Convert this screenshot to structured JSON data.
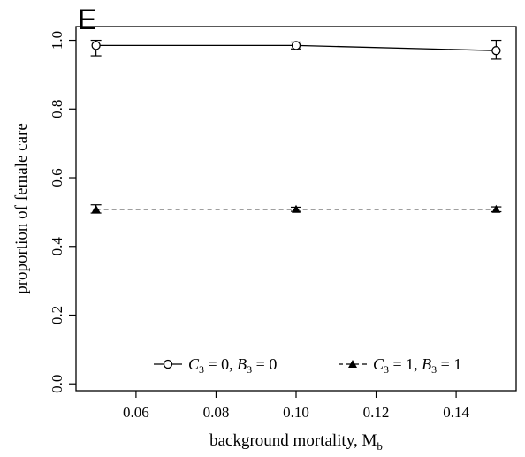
{
  "chart_data": {
    "type": "line",
    "panel_label": "E",
    "title": "",
    "xlabel": "background mortality, M",
    "xlabel_subscript": "b",
    "ylabel": "proportion of female care",
    "xlim": [
      0.045,
      0.155
    ],
    "ylim": [
      -0.02,
      1.04
    ],
    "x_ticks": [
      0.06,
      0.08,
      0.1,
      0.12,
      0.14
    ],
    "x_tick_labels": [
      "0.06",
      "0.08",
      "0.10",
      "0.12",
      "0.14"
    ],
    "y_ticks": [
      0.0,
      0.2,
      0.4,
      0.6,
      0.8,
      1.0
    ],
    "y_tick_labels": [
      "0.0",
      "0.2",
      "0.4",
      "0.6",
      "0.8",
      "1.0"
    ],
    "grid": false,
    "legend_position": "bottom",
    "series": [
      {
        "legend": {
          "c": "C",
          "c_sub": "3",
          "c_val": " = 0, ",
          "b": "B",
          "b_sub": "3",
          "b_val": " = 0"
        },
        "marker": "open-circle",
        "line_style": "solid",
        "x": [
          0.05,
          0.1,
          0.15
        ],
        "y": [
          0.985,
          0.985,
          0.97
        ],
        "err_low": [
          0.955,
          0.975,
          0.945
        ],
        "err_high": [
          1.0,
          0.995,
          1.0
        ]
      },
      {
        "legend": {
          "c": "C",
          "c_sub": "3",
          "c_val": " = 1, ",
          "b": "B",
          "b_sub": "3",
          "b_val": " = 1"
        },
        "marker": "filled-triangle",
        "line_style": "dashed",
        "x": [
          0.05,
          0.1,
          0.15
        ],
        "y": [
          0.508,
          0.508,
          0.508
        ],
        "err_low": [
          0.497,
          0.502,
          0.501
        ],
        "err_high": [
          0.521,
          0.514,
          0.515
        ]
      }
    ]
  }
}
